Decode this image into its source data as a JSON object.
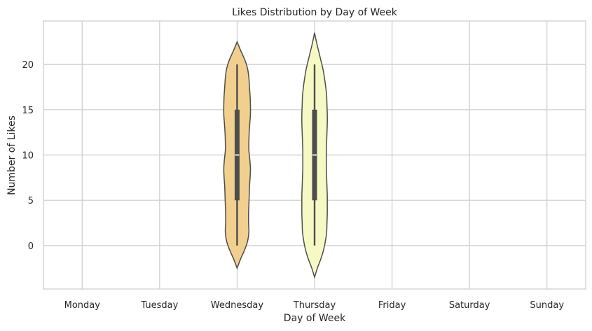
{
  "chart_data": {
    "type": "violin",
    "title": "Likes Distribution by Day of Week",
    "xlabel": "Day of Week",
    "ylabel": "Number of Likes",
    "categories": [
      "Monday",
      "Tuesday",
      "Wednesday",
      "Thursday",
      "Friday",
      "Saturday",
      "Sunday"
    ],
    "ylim": [
      -4.8,
      24.8
    ],
    "yticks": [
      0,
      5,
      10,
      15,
      20
    ],
    "grid": true,
    "violins": [
      {
        "category": "Wednesday",
        "fill": "#f1cf8e",
        "min": 0,
        "q1": 5,
        "median": 10,
        "q3": 15,
        "max": 20,
        "kde_extent": [
          -2.5,
          22.5
        ],
        "profile": [
          [
            -2.5,
            0.0
          ],
          [
            -1.5,
            0.11
          ],
          [
            -0.5,
            0.24
          ],
          [
            0.5,
            0.34
          ],
          [
            1.5,
            0.38
          ],
          [
            2.5,
            0.37
          ],
          [
            3.5,
            0.37
          ],
          [
            4.5,
            0.38
          ],
          [
            5.5,
            0.39
          ],
          [
            6.5,
            0.4
          ],
          [
            7.5,
            0.42
          ],
          [
            8.5,
            0.43
          ],
          [
            9.5,
            0.41
          ],
          [
            10.5,
            0.38
          ],
          [
            11.5,
            0.38
          ],
          [
            12.5,
            0.39
          ],
          [
            13.5,
            0.41
          ],
          [
            14.5,
            0.43
          ],
          [
            15.5,
            0.43
          ],
          [
            16.5,
            0.42
          ],
          [
            17.5,
            0.4
          ],
          [
            18.5,
            0.38
          ],
          [
            19.5,
            0.34
          ],
          [
            20.5,
            0.25
          ],
          [
            21.5,
            0.12
          ],
          [
            22.5,
            0.0
          ]
        ]
      },
      {
        "category": "Thursday",
        "fill": "#f7f9c4",
        "min": 0,
        "q1": 5,
        "median": 10,
        "q3": 15,
        "max": 20,
        "kde_extent": [
          -3.5,
          23.5
        ],
        "profile": [
          [
            -3.5,
            0.0
          ],
          [
            -2.5,
            0.09
          ],
          [
            -1.5,
            0.2
          ],
          [
            -0.5,
            0.29
          ],
          [
            0.5,
            0.35
          ],
          [
            1.5,
            0.39
          ],
          [
            2.5,
            0.4
          ],
          [
            3.5,
            0.41
          ],
          [
            4.5,
            0.41
          ],
          [
            5.5,
            0.41
          ],
          [
            6.5,
            0.4
          ],
          [
            7.5,
            0.39
          ],
          [
            8.5,
            0.38
          ],
          [
            9.5,
            0.38
          ],
          [
            10.5,
            0.38
          ],
          [
            11.5,
            0.39
          ],
          [
            12.5,
            0.4
          ],
          [
            13.5,
            0.41
          ],
          [
            14.5,
            0.41
          ],
          [
            15.5,
            0.4
          ],
          [
            16.5,
            0.39
          ],
          [
            17.5,
            0.36
          ],
          [
            18.5,
            0.32
          ],
          [
            19.5,
            0.27
          ],
          [
            20.5,
            0.2
          ],
          [
            21.5,
            0.13
          ],
          [
            22.5,
            0.06
          ],
          [
            23.5,
            0.0
          ]
        ]
      }
    ],
    "colors": {
      "outline": "#4d4d4d",
      "box": "#4d4d4d",
      "median": "#ffffff",
      "grid": "#cccccc",
      "frame": "#cccccc"
    }
  }
}
